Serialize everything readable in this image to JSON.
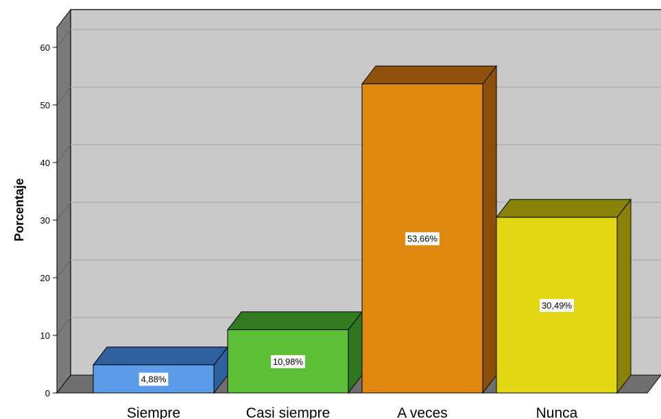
{
  "chart_data": {
    "type": "bar",
    "title": "",
    "xlabel": "",
    "ylabel": "Porcentaje",
    "categories": [
      "Siempre",
      "Casi siempre",
      "A veces",
      "Nunca"
    ],
    "values": [
      4.88,
      10.98,
      53.66,
      30.49
    ],
    "data_labels": [
      "4,88%",
      "10,98%",
      "53,66%",
      "30,49%"
    ],
    "yticks": [
      0,
      10,
      20,
      30,
      40,
      50,
      60
    ],
    "ylim": [
      0,
      63
    ],
    "grid": true,
    "legend": "none",
    "style": "3d",
    "colors": {
      "Siempre": {
        "front": "#5b9be8",
        "top": "#2f5f9c",
        "side": "#2f5f9c"
      },
      "Casi siempre": {
        "front": "#5cbf37",
        "top": "#347a22",
        "side": "#2f7420"
      },
      "A veces": {
        "front": "#e0870f",
        "top": "#8f5208",
        "side": "#8a4f08"
      },
      "Nunca": {
        "front": "#e3d613",
        "top": "#8a8207",
        "side": "#8a8207"
      },
      "plot_background": "#c9c9c9",
      "wall_side": "#7a7a7a",
      "floor": "#6f6f6f",
      "gridline": "#b0b0b0"
    }
  }
}
